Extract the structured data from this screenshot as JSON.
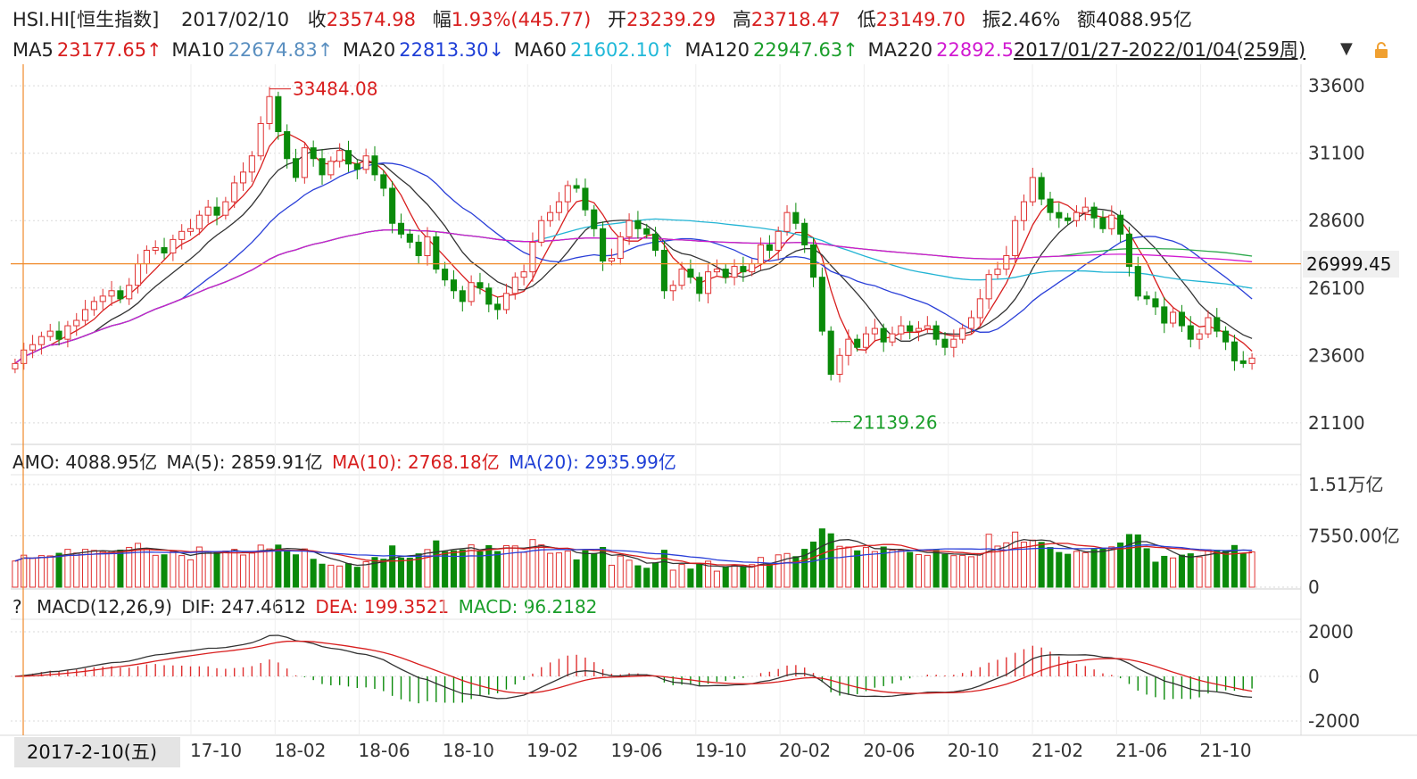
{
  "header": {
    "symbol": "HSI.HI[恒生指数]",
    "date": "2017/02/10",
    "close_label": "收",
    "close": "23574.98",
    "change_label": "幅",
    "change": "1.93%(445.77)",
    "open_label": "开",
    "open": "23239.29",
    "high_label": "高",
    "high": "23718.47",
    "low_label": "低",
    "low": "23149.70",
    "amp_label": "振",
    "amp": "2.46%",
    "amount_label": "额",
    "amount": "4088.95亿"
  },
  "ma_row": {
    "ma5_label": "MA5",
    "ma5": "23177.65↑",
    "ma10_label": "MA10",
    "ma10": "22674.83↑",
    "ma20_label": "MA20",
    "ma20": "22813.30↓",
    "ma60_label": "MA60",
    "ma60": "21602.10↑",
    "ma120_label": "MA120",
    "ma120": "22947.63↑",
    "ma220_label": "MA220",
    "ma220": "22892.52",
    "range": "2017/01/27-2022/01/04(259周)",
    "dropdown_icon": "triangle-down-icon",
    "lock_icon": "lock-icon"
  },
  "amo_row": {
    "amo": "AMO: 4088.95亿",
    "ma5": "MA(5): 2859.91亿",
    "ma10": "MA(10): 2768.18亿",
    "ma20": "MA(20): 2935.99亿"
  },
  "macd_row": {
    "help": "?",
    "name": "MACD(12,26,9)",
    "dif": "DIF: 247.4612",
    "dea": "DEA: 199.3521",
    "macd": "MACD: 96.2182"
  },
  "cursor": {
    "date": "2017-2-10(五)",
    "price": "26999.45",
    "first_tick": "1"
  },
  "colors": {
    "up": "#e03131",
    "down": "#0a8a0a",
    "ma5": "#d81e1e",
    "ma10": "#333333",
    "ma20": "#2a3fd8",
    "ma60": "#22b4d4",
    "ma120": "#2aa84a",
    "ma220": "#d11ad1",
    "grid": "#d9d9d9",
    "cursor": "#f08a2b"
  },
  "chart_data": [
    {
      "type": "candlestick",
      "title": "HSI.HI[恒生指数]",
      "period": "weekly",
      "y_ticks": [
        33600,
        31100,
        28600,
        26100,
        23600,
        21100
      ],
      "ylim": [
        20300,
        34400
      ],
      "x_ticks": [
        "17-10",
        "18-02",
        "18-06",
        "18-10",
        "19-02",
        "19-06",
        "19-10",
        "20-02",
        "20-06",
        "20-10",
        "21-02",
        "21-06",
        "21-10"
      ],
      "annotations": [
        {
          "label": "33484.08",
          "type": "max",
          "value": 33484.08,
          "date": "18-01"
        },
        {
          "label": "21139.26",
          "type": "min",
          "value": 21139.26,
          "date": "20-03"
        }
      ],
      "close_series": [
        23300,
        23800,
        24000,
        24300,
        24500,
        24200,
        24700,
        24900,
        25300,
        25600,
        25800,
        26000,
        25700,
        26200,
        27000,
        27500,
        27600,
        27400,
        27900,
        28200,
        28300,
        28800,
        29100,
        28800,
        29300,
        30000,
        30400,
        31000,
        32200,
        33200,
        31900,
        30900,
        30200,
        31300,
        30900,
        30300,
        30800,
        31200,
        30700,
        30500,
        31000,
        30300,
        29800,
        28500,
        28100,
        27800,
        27300,
        28000,
        26800,
        26400,
        26000,
        25600,
        26300,
        26100,
        25500,
        25300,
        25900,
        26500,
        26700,
        27800,
        28600,
        28900,
        29300,
        29900,
        29800,
        29000,
        28300,
        27100,
        27200,
        28000,
        28600,
        28300,
        28100,
        27500,
        26000,
        26200,
        26800,
        26500,
        25900,
        26700,
        26800,
        26500,
        26900,
        26700,
        27000,
        27700,
        27500,
        28200,
        28900,
        28500,
        27700,
        26500,
        24500,
        22900,
        23600,
        24200,
        23900,
        24400,
        24600,
        24100,
        24400,
        24700,
        24500,
        24600,
        24700,
        24200,
        23900,
        24200,
        24600,
        25000,
        25700,
        26600,
        26800,
        27300,
        28600,
        29300,
        30200,
        29400,
        28900,
        28700,
        28600,
        28900,
        29100,
        28700,
        28300,
        28800,
        28100,
        26900,
        25800,
        25700,
        25400,
        24800,
        25200,
        24700,
        24200,
        24400,
        25000,
        24500,
        24100,
        23400,
        23300,
        23500
      ]
    },
    {
      "type": "bar",
      "name": "AMO",
      "y_ticks_labels": [
        "1.51万亿",
        "7550.00亿",
        "0"
      ],
      "y_ticks": [
        15100,
        7550,
        0
      ],
      "ylim": [
        0,
        16000
      ],
      "unit": "亿"
    },
    {
      "type": "bar+line",
      "name": "MACD(12,26,9)",
      "y_ticks": [
        2000,
        0,
        -2000
      ],
      "ylim": [
        -2400,
        2400
      ]
    }
  ]
}
